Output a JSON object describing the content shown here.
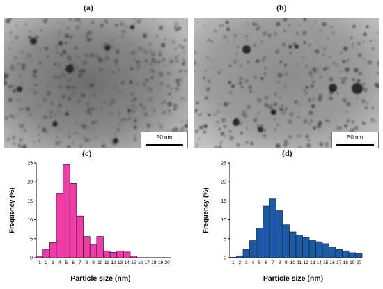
{
  "panels": {
    "a": "(a)",
    "b": "(b)",
    "c": "(c)",
    "d": "(d)"
  },
  "images": [
    {
      "panel": "a",
      "scale_bar": "50 nm"
    },
    {
      "panel": "b",
      "scale_bar": "50 nm"
    }
  ],
  "colors": {
    "hist_c_fill": "#f03ca8",
    "hist_d_fill": "#1a5aa6",
    "bar_stroke": "#222222"
  },
  "chart_data": [
    {
      "type": "bar",
      "panel": "c",
      "categories": [
        "1",
        "2",
        "3",
        "4",
        "5",
        "6",
        "7",
        "8",
        "9",
        "10",
        "11",
        "12",
        "13",
        "14",
        "15",
        "16",
        "17",
        "18",
        "19",
        "20"
      ],
      "values": [
        0.4,
        2.2,
        4.0,
        17.0,
        24.6,
        19.6,
        11.0,
        5.6,
        3.5,
        5.6,
        1.8,
        1.4,
        1.8,
        1.5,
        0.4,
        0,
        0,
        0,
        0,
        0
      ],
      "xlabel": "Particle size (nm)",
      "ylabel": "Frequency (%)",
      "ylim": [
        0,
        25
      ],
      "yticks": [
        0,
        5,
        10,
        15,
        20,
        25
      ]
    },
    {
      "type": "bar",
      "panel": "d",
      "categories": [
        "1",
        "2",
        "3",
        "4",
        "5",
        "6",
        "7",
        "8",
        "9",
        "10",
        "11",
        "12",
        "13",
        "14",
        "15",
        "16",
        "17",
        "18",
        "19",
        "20"
      ],
      "values": [
        0.1,
        0.5,
        2.2,
        4.5,
        7.8,
        13.6,
        15.5,
        12.4,
        8.7,
        6.8,
        6.0,
        5.3,
        4.7,
        4.2,
        3.7,
        2.8,
        2.2,
        1.8,
        1.3,
        1.1
      ],
      "xlabel": "Particle size (nm)",
      "ylabel": "Frequency (%)",
      "ylim": [
        0,
        25
      ],
      "yticks": [
        0,
        5,
        10,
        15,
        20,
        25
      ]
    }
  ]
}
